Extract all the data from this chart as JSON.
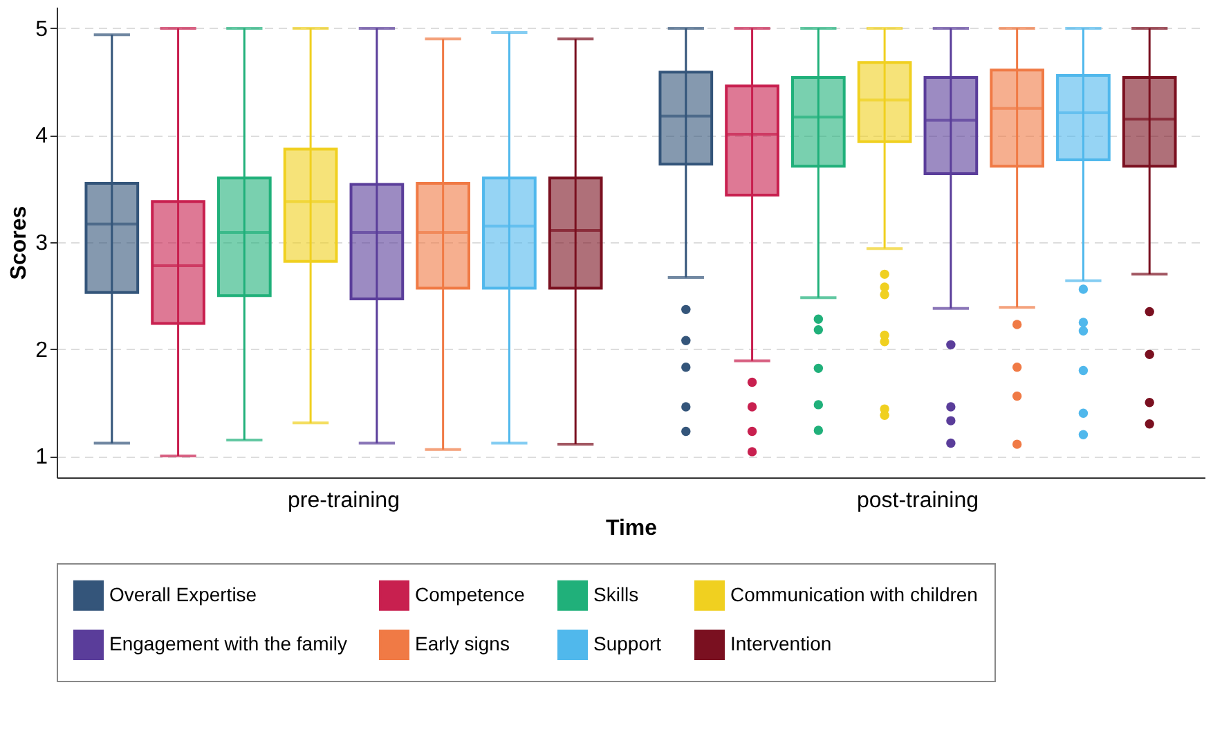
{
  "chart_data": {
    "type": "box",
    "xlabel": "Time",
    "ylabel": "Scores",
    "categories": [
      "pre-training",
      "post-training"
    ],
    "ylim": [
      0.8,
      5.2
    ],
    "yticks": [
      1,
      2,
      3,
      4,
      5
    ],
    "grid": "y",
    "legend": "bottom",
    "series": [
      {
        "name": "Overall Expertise",
        "color": "#34557a",
        "boxes": [
          {
            "low": 1.12,
            "q1": 2.53,
            "median": 3.17,
            "q3": 3.55,
            "high": 4.94
          },
          {
            "low": 2.67,
            "q1": 3.73,
            "median": 4.18,
            "q3": 4.59,
            "high": 5,
            "outliers": [
              2.37,
              2.08,
              1.83,
              1.46,
              1.23
            ]
          }
        ]
      },
      {
        "name": "Competence",
        "color": "#c8204f",
        "boxes": [
          {
            "low": 1.0,
            "q1": 2.24,
            "median": 2.78,
            "q3": 3.38,
            "high": 5
          },
          {
            "low": 1.89,
            "q1": 3.44,
            "median": 4.01,
            "q3": 4.46,
            "high": 5,
            "outliers": [
              1.69,
              1.46,
              1.23,
              1.04
            ]
          }
        ]
      },
      {
        "name": "Skills",
        "color": "#20b07a",
        "boxes": [
          {
            "low": 1.15,
            "q1": 2.5,
            "median": 3.09,
            "q3": 3.6,
            "high": 5
          },
          {
            "low": 2.48,
            "q1": 3.71,
            "median": 4.17,
            "q3": 4.54,
            "high": 5,
            "outliers": [
              2.28,
              2.18,
              1.82,
              1.48,
              1.24
            ]
          }
        ]
      },
      {
        "name": "Communication with children",
        "color": "#f0d020",
        "boxes": [
          {
            "low": 1.31,
            "q1": 2.82,
            "median": 3.38,
            "q3": 3.87,
            "high": 5
          },
          {
            "low": 2.94,
            "q1": 3.94,
            "median": 4.33,
            "q3": 4.68,
            "high": 5,
            "outliers": [
              2.7,
              2.58,
              2.51,
              2.13,
              2.07,
              1.44,
              1.38
            ]
          }
        ]
      },
      {
        "name": "Engagement with the family",
        "color": "#5a3d9a",
        "boxes": [
          {
            "low": 1.12,
            "q1": 2.47,
            "median": 3.09,
            "q3": 3.54,
            "high": 5
          },
          {
            "low": 2.38,
            "q1": 3.64,
            "median": 4.14,
            "q3": 4.54,
            "high": 5,
            "outliers": [
              2.04,
              1.46,
              1.33,
              1.12
            ]
          }
        ]
      },
      {
        "name": "Early signs",
        "color": "#f07a45",
        "boxes": [
          {
            "low": 1.06,
            "q1": 2.57,
            "median": 3.09,
            "q3": 3.55,
            "high": 4.9
          },
          {
            "low": 2.39,
            "q1": 3.71,
            "median": 4.25,
            "q3": 4.61,
            "high": 5,
            "outliers": [
              2.23,
              1.83,
              1.56,
              1.11
            ]
          }
        ]
      },
      {
        "name": "Support",
        "color": "#50b8ec",
        "boxes": [
          {
            "low": 1.12,
            "q1": 2.57,
            "median": 3.15,
            "q3": 3.6,
            "high": 4.96
          },
          {
            "low": 2.64,
            "q1": 3.77,
            "median": 4.21,
            "q3": 4.56,
            "high": 5,
            "outliers": [
              2.56,
              2.25,
              2.17,
              1.8,
              1.4,
              1.2
            ]
          }
        ]
      },
      {
        "name": "Intervention",
        "color": "#7a1020",
        "boxes": [
          {
            "low": 1.11,
            "q1": 2.57,
            "median": 3.11,
            "q3": 3.6,
            "high": 4.9
          },
          {
            "low": 2.7,
            "q1": 3.71,
            "median": 4.15,
            "q3": 4.54,
            "high": 5,
            "outliers": [
              2.35,
              1.95,
              1.5,
              1.3
            ]
          }
        ]
      }
    ]
  }
}
